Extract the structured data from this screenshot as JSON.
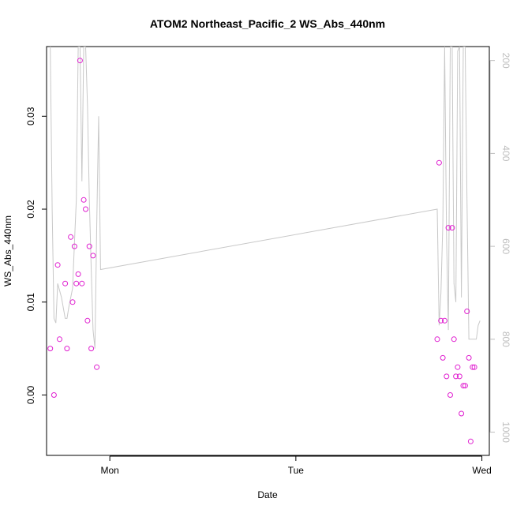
{
  "chart_data": {
    "type": "scatter",
    "title": "ATOM2 Northeast_Pacific_2 WS_Abs_440nm",
    "xlabel": "Date",
    "ylabel": "WS_Abs_440nm",
    "x_ticks": [
      {
        "label": "Mon",
        "value": 1.0
      },
      {
        "label": "Tue",
        "value": 2.0
      },
      {
        "label": "Wed",
        "value": 3.0
      }
    ],
    "xlim": [
      0.66,
      3.04
    ],
    "ylim": [
      -0.0065,
      0.0375
    ],
    "y_ticks": [
      0.0,
      0.01,
      0.02,
      0.03
    ],
    "y_tick_labels": [
      "0.00",
      "0.01",
      "0.02",
      "0.03"
    ],
    "y2lim": [
      1050,
      170
    ],
    "y2_ticks": [
      200,
      400,
      600,
      800,
      1000
    ],
    "y2_tick_labels": [
      "200",
      "400",
      "600",
      "800",
      "1000"
    ],
    "grid": false,
    "colors": {
      "points": "#e020d0",
      "secondary_line": "#c8c8c8",
      "right_axis": "#bdbdbd"
    },
    "series": [
      {
        "marker": "open-circle",
        "x": [
          0.68,
          0.7,
          0.72,
          0.73,
          0.76,
          0.77,
          0.79,
          0.8,
          0.81,
          0.82,
          0.83,
          0.84,
          0.85,
          0.86,
          0.87,
          0.88,
          0.89,
          0.9,
          0.91,
          0.93,
          2.76,
          2.77,
          2.78,
          2.79,
          2.8,
          2.81,
          2.82,
          2.83,
          2.84,
          2.85,
          2.86,
          2.87,
          2.88,
          2.89,
          2.9,
          2.91,
          2.92,
          2.93,
          2.94,
          2.95,
          2.96
        ],
        "y": [
          0.005,
          0.0,
          0.014,
          0.006,
          0.012,
          0.005,
          0.017,
          0.01,
          0.016,
          0.012,
          0.013,
          0.036,
          0.012,
          0.021,
          0.02,
          0.008,
          0.016,
          0.005,
          0.015,
          0.003,
          0.006,
          0.025,
          0.008,
          0.004,
          0.008,
          0.002,
          0.018,
          0.0,
          0.018,
          0.006,
          0.002,
          0.003,
          0.002,
          -0.002,
          0.001,
          0.001,
          0.009,
          0.004,
          -0.005,
          0.003,
          0.003
        ]
      },
      {
        "axis": "right",
        "x": [
          0.68,
          0.69,
          0.7,
          0.71,
          0.72,
          0.74,
          0.76,
          0.77,
          0.78,
          0.8,
          0.81,
          0.82,
          0.83,
          0.84,
          0.85,
          0.86,
          0.87,
          0.88,
          0.89,
          0.9,
          0.91,
          0.92,
          0.93,
          0.94,
          0.95,
          2.76,
          2.77,
          2.78,
          2.79,
          2.8,
          2.81,
          2.82,
          2.83,
          2.84,
          2.85,
          2.86,
          2.87,
          2.88,
          2.89,
          2.9,
          2.91,
          2.92,
          2.93,
          2.94,
          2.95,
          2.96,
          2.97,
          2.98,
          2.99
        ],
        "y": [
          170,
          520,
          755,
          765,
          680,
          710,
          755,
          755,
          730,
          690,
          590,
          500,
          170,
          170,
          460,
          170,
          170,
          300,
          500,
          650,
          780,
          820,
          550,
          320,
          650,
          520,
          770,
          700,
          550,
          170,
          580,
          780,
          170,
          170,
          680,
          720,
          180,
          170,
          710,
          170,
          170,
          500,
          800,
          800,
          800,
          800,
          800,
          770,
          760
        ]
      }
    ]
  }
}
